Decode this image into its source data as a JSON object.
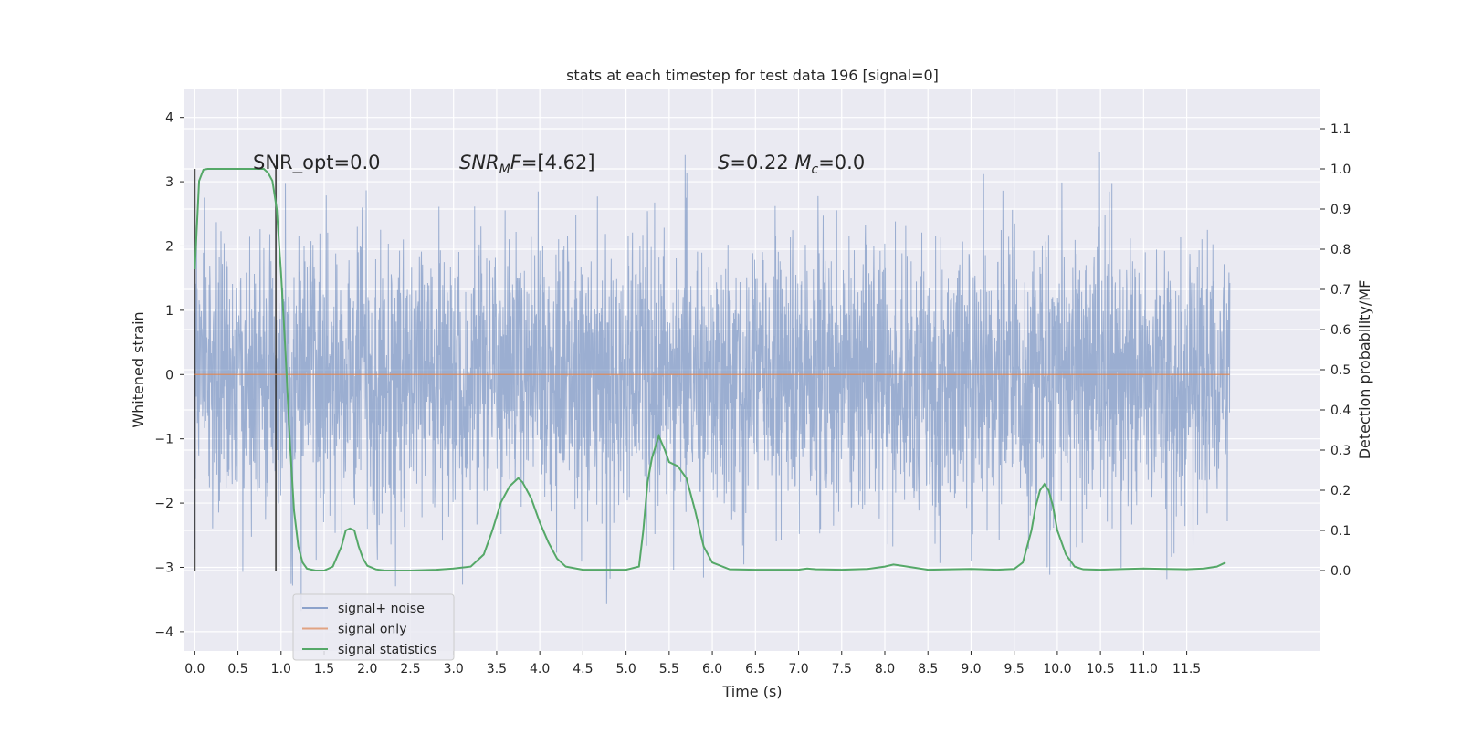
{
  "chart_data": {
    "type": "line",
    "title": "stats at each timestep for test data 196 [signal=0]",
    "xlabel": "Time (s)",
    "ylabel_left": "Whitened strain",
    "ylabel_right": "Detection probability/MF",
    "xlim": [
      -0.12,
      13.05
    ],
    "ylim_left": [
      -4.3,
      4.45
    ],
    "ylim_right": [
      -0.2,
      1.2
    ],
    "x_ticks": [
      "0.0",
      "0.5",
      "1.0",
      "1.5",
      "2.0",
      "2.5",
      "3.0",
      "3.5",
      "4.0",
      "4.5",
      "5.0",
      "5.5",
      "6.0",
      "6.5",
      "7.0",
      "7.5",
      "8.0",
      "8.5",
      "9.0",
      "9.5",
      "10.0",
      "10.5",
      "11.0",
      "11.5"
    ],
    "y_ticks_left": [
      "−4",
      "−3",
      "−2",
      "−1",
      "0",
      "1",
      "2",
      "3",
      "4"
    ],
    "y_ticks_right": [
      "0.0",
      "0.1",
      "0.2",
      "0.3",
      "0.4",
      "0.5",
      "0.6",
      "0.7",
      "0.8",
      "0.9",
      "1.0",
      "1.1"
    ],
    "grid": true,
    "legend_position": "lower-left",
    "colors": {
      "background": "#eaeaf2",
      "grid": "#ffffff",
      "signal_noise": "#4c72b0",
      "signal_only": "#dd8452",
      "signal_statistics": "#55a868",
      "markers": "#333333"
    },
    "annotations": [
      {
        "text": "SNR_opt=0.0"
      },
      {
        "text": "SNR_MF=[4.62]"
      },
      {
        "text": "S=0.22   M_c=0.0"
      }
    ],
    "markers_x": [
      0.0,
      0.94
    ],
    "series": [
      {
        "name": "signal+ noise",
        "description_range": {
          "x": [
            0.0,
            12.0
          ],
          "y_approx": [
            -3.9,
            4.1
          ]
        }
      },
      {
        "name": "signal only",
        "x": [
          0.0,
          12.0
        ],
        "y": [
          0.0,
          0.0
        ]
      },
      {
        "name": "signal statistics",
        "axis": "right",
        "x": [
          0.0,
          0.05,
          0.1,
          0.15,
          0.2,
          0.3,
          0.4,
          0.5,
          0.6,
          0.7,
          0.8,
          0.85,
          0.9,
          0.95,
          1.0,
          1.05,
          1.1,
          1.15,
          1.2,
          1.25,
          1.3,
          1.4,
          1.5,
          1.6,
          1.7,
          1.75,
          1.8,
          1.85,
          1.9,
          1.95,
          2.0,
          2.1,
          2.2,
          2.5,
          2.8,
          3.0,
          3.2,
          3.35,
          3.45,
          3.55,
          3.65,
          3.75,
          3.8,
          3.9,
          4.0,
          4.1,
          4.2,
          4.3,
          4.5,
          4.8,
          5.0,
          5.15,
          5.2,
          5.25,
          5.3,
          5.38,
          5.45,
          5.5,
          5.6,
          5.7,
          5.8,
          5.9,
          6.0,
          6.2,
          6.5,
          7.0,
          7.1,
          7.2,
          7.5,
          7.8,
          8.0,
          8.1,
          8.2,
          8.5,
          9.0,
          9.3,
          9.5,
          9.6,
          9.7,
          9.75,
          9.8,
          9.85,
          9.9,
          9.95,
          10.0,
          10.1,
          10.2,
          10.3,
          10.5,
          10.8,
          11.0,
          11.5,
          11.7,
          11.85,
          11.95
        ],
        "y": [
          0.75,
          0.97,
          0.998,
          1.0,
          1.0,
          1.0,
          1.0,
          1.0,
          1.0,
          1.0,
          1.0,
          0.99,
          0.97,
          0.9,
          0.74,
          0.55,
          0.33,
          0.15,
          0.06,
          0.02,
          0.005,
          0.0,
          0.0,
          0.01,
          0.06,
          0.1,
          0.105,
          0.1,
          0.06,
          0.03,
          0.012,
          0.003,
          0.0,
          0.0,
          0.002,
          0.005,
          0.01,
          0.04,
          0.1,
          0.17,
          0.21,
          0.23,
          0.22,
          0.18,
          0.12,
          0.07,
          0.03,
          0.01,
          0.002,
          0.002,
          0.002,
          0.01,
          0.1,
          0.22,
          0.28,
          0.335,
          0.3,
          0.27,
          0.26,
          0.23,
          0.15,
          0.06,
          0.02,
          0.003,
          0.002,
          0.002,
          0.005,
          0.003,
          0.002,
          0.004,
          0.01,
          0.015,
          0.012,
          0.002,
          0.004,
          0.002,
          0.004,
          0.02,
          0.1,
          0.16,
          0.2,
          0.215,
          0.2,
          0.16,
          0.1,
          0.04,
          0.01,
          0.003,
          0.002,
          0.004,
          0.005,
          0.003,
          0.005,
          0.01,
          0.02
        ]
      }
    ]
  }
}
